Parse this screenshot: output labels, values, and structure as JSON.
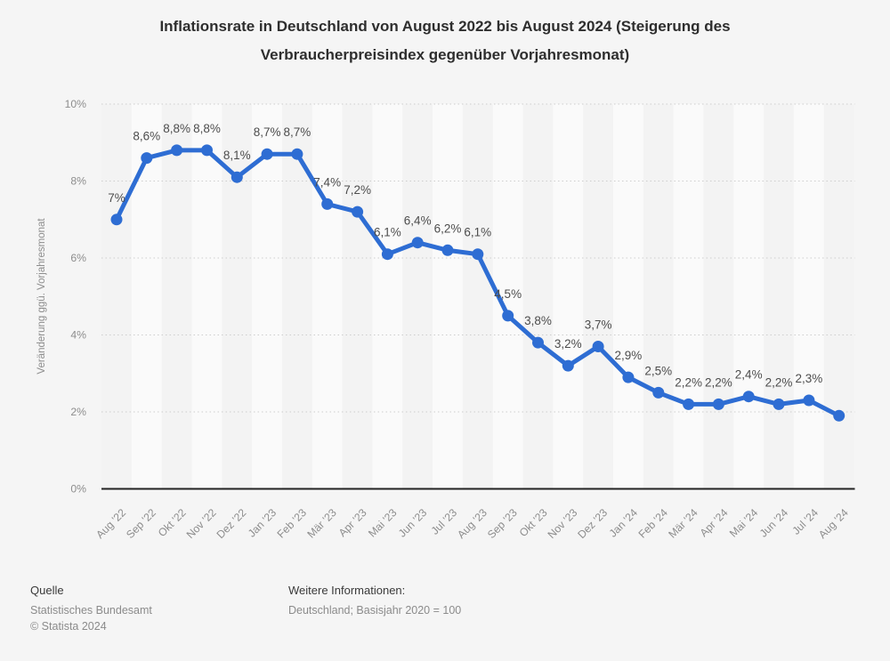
{
  "title_lines": [
    "Inflationsrate in Deutschland von August 2022 bis August 2024 (Steigerung des",
    "Verbraucherpreisindex gegenüber Vorjahresmonat)"
  ],
  "chart_data": {
    "type": "line",
    "categories": [
      "Aug '22",
      "Sep '22",
      "Okt '22",
      "Nov '22",
      "Dez '22",
      "Jan '23",
      "Feb '23",
      "Mär '23",
      "Apr '23",
      "Mai '23",
      "Jun '23",
      "Jul '23",
      "Aug '23",
      "Sep '23",
      "Okt '23",
      "Nov '23",
      "Dez '23",
      "Jan '24",
      "Feb '24",
      "Mär '24",
      "Apr '24",
      "Mai '24",
      "Jun '24",
      "Jul '24",
      "Aug '24"
    ],
    "values": [
      7.0,
      8.6,
      8.8,
      8.8,
      8.1,
      8.7,
      8.7,
      7.4,
      7.2,
      6.1,
      6.4,
      6.2,
      6.1,
      4.5,
      3.8,
      3.2,
      3.7,
      2.9,
      2.5,
      2.2,
      2.2,
      2.4,
      2.2,
      2.3,
      1.9
    ],
    "point_labels": [
      "7%",
      "8,6%",
      "8,8%",
      "8,8%",
      "8,1%",
      "8,7%",
      "8,7%",
      "7,4%",
      "7,2%",
      "6,1%",
      "6,4%",
      "6,2%",
      "6,1%",
      "4,5%",
      "3,8%",
      "3,2%",
      "3,7%",
      "2,9%",
      "2,5%",
      "2,2%",
      "2,2%",
      "2,4%",
      "2,2%",
      "2,3%",
      ""
    ],
    "ylabel": "Veränderung ggü. Vorjahresmonat",
    "y_ticks": [
      "10%",
      "8%",
      "6%",
      "4%",
      "2%",
      "0%"
    ],
    "ylim": [
      0,
      10
    ],
    "grid": "horizontal dotted",
    "legend": "none",
    "line_color": "#2e6dd3",
    "colors": {
      "background": "#f5f5f5",
      "band_light": "#fafafa",
      "band_dark": "#f3f3f3",
      "gridline": "#cdcdcd",
      "axis_line": "#222222",
      "point_label_text": "#4d4d4d",
      "axis_tick_text": "#8d8d8d"
    }
  },
  "footer": {
    "source_label": "Quelle",
    "source_name": "Statistisches Bundesamt",
    "copyright": "© Statista 2024",
    "info_label": "Weitere Informationen:",
    "info_text": "Deutschland; Basisjahr 2020 = 100"
  }
}
